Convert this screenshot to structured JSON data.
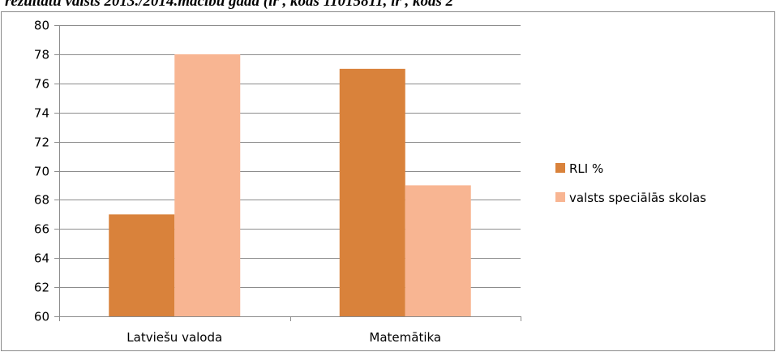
{
  "caption": "rezultātu valsts 2013./2014.mācību gadā (ir , kods 11015811, ir , kods 2",
  "chart_data": {
    "type": "bar",
    "title": "",
    "xlabel": "",
    "ylabel": "",
    "categories": [
      "Latviešu valoda",
      "Matemātika"
    ],
    "series": [
      {
        "name": "RLI  %",
        "color": "#d9823b",
        "values": [
          67,
          77
        ]
      },
      {
        "name": "valsts speciālās skolas",
        "color": "#f8b592",
        "values": [
          78,
          69
        ]
      }
    ],
    "ylim": [
      60,
      80
    ],
    "yticks": [
      60,
      62,
      64,
      66,
      68,
      70,
      72,
      74,
      76,
      78,
      80
    ],
    "grid": true,
    "legend_position": "right"
  }
}
